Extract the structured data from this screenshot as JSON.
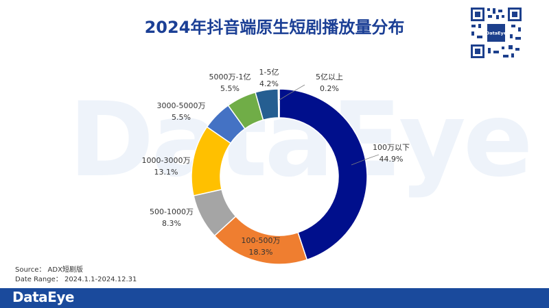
{
  "title": "2024年抖音端原生短剧播放量分布",
  "watermark": "DataEye",
  "qr_logo": "DataEye",
  "source_line": "Source：  ADX短剧版",
  "date_line": "Date Range：  2024.1.1-2024.12.31",
  "brand": "DataEye",
  "chart_data": {
    "type": "pie",
    "variant": "donut",
    "title": "2024年抖音端原生短剧播放量分布",
    "slices": [
      {
        "label": "100万以下",
        "value": 44.9,
        "pct_text": "44.9%",
        "color": "#000f8c"
      },
      {
        "label": "100-500万",
        "value": 18.3,
        "pct_text": "18.3%",
        "color": "#ef7e30"
      },
      {
        "label": "500-1000万",
        "value": 8.3,
        "pct_text": "8.3%",
        "color": "#a5a5a5"
      },
      {
        "label": "1000-3000万",
        "value": 13.1,
        "pct_text": "13.1%",
        "color": "#ffc000"
      },
      {
        "label": "3000-5000万",
        "value": 5.5,
        "pct_text": "5.5%",
        "color": "#4472c4"
      },
      {
        "label": "5000万-1亿",
        "value": 5.5,
        "pct_text": "5.5%",
        "color": "#70ad47"
      },
      {
        "label": "1-5亿",
        "value": 4.2,
        "pct_text": "4.2%",
        "color": "#255e91"
      },
      {
        "label": "5亿以上",
        "value": 0.2,
        "pct_text": "0.2%",
        "color": "#9e480e"
      }
    ]
  }
}
